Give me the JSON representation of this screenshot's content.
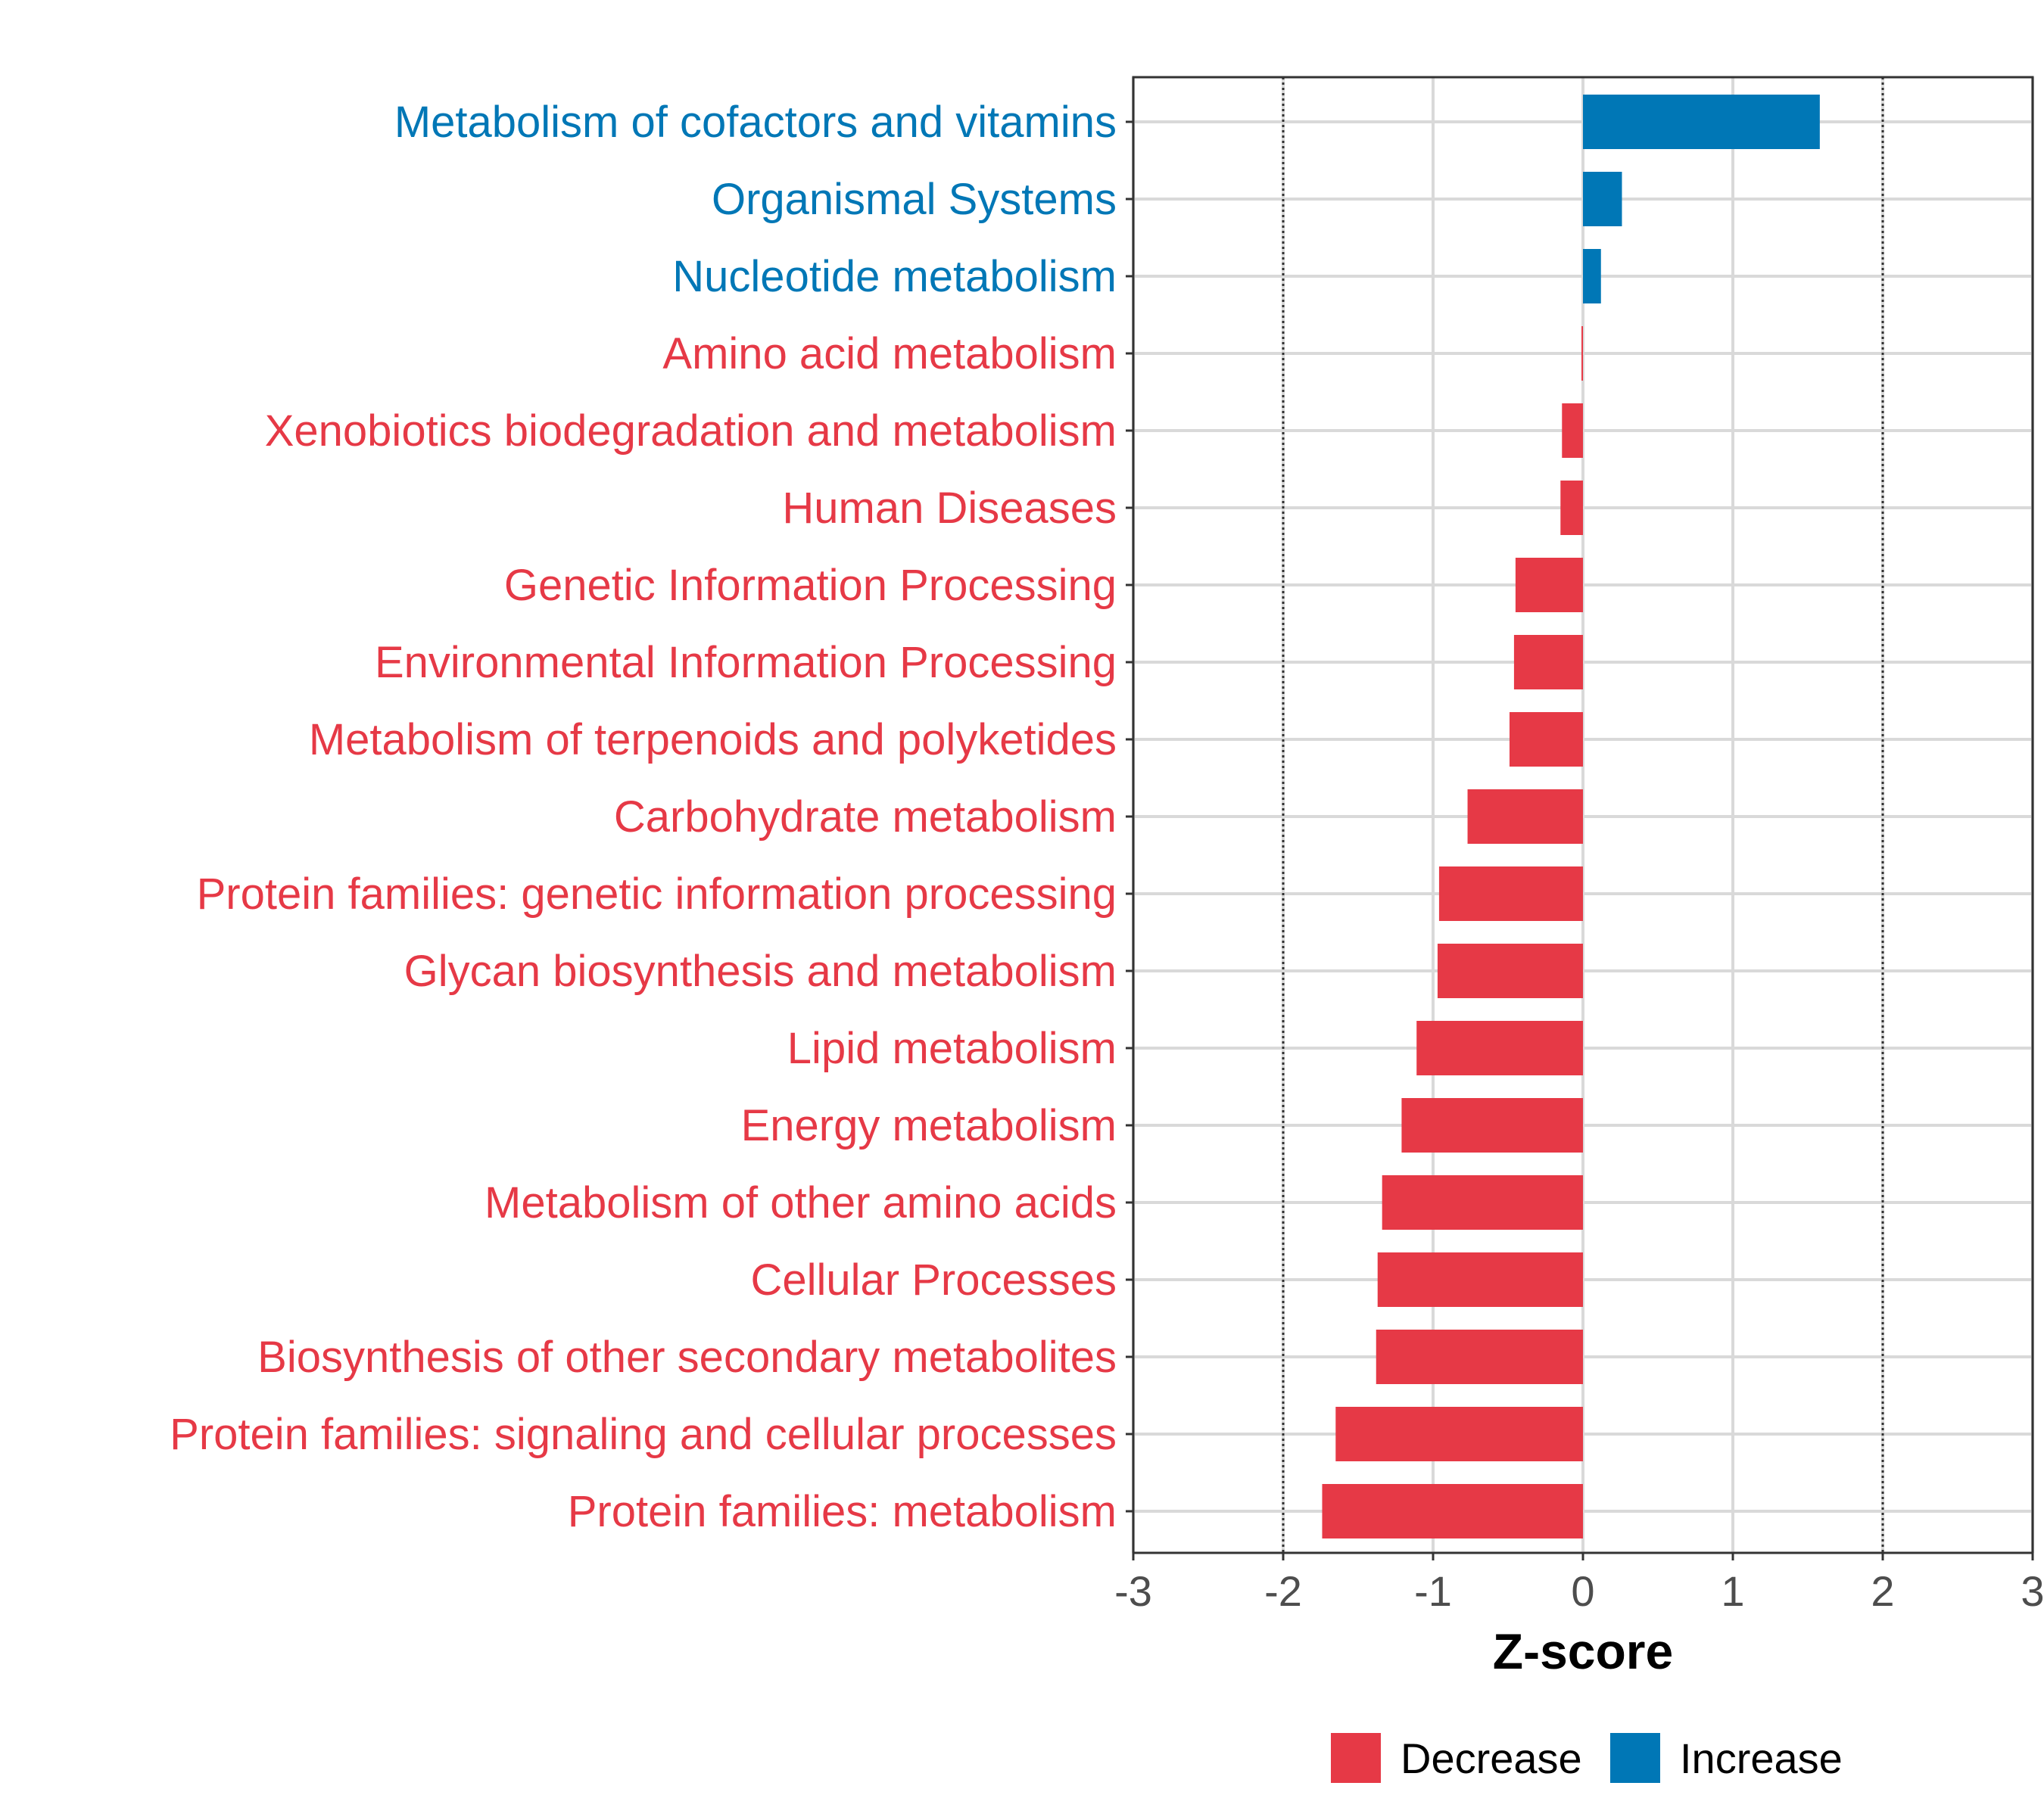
{
  "chart_data": {
    "type": "bar",
    "orientation": "horizontal",
    "title": "",
    "xlabel": "Z-score",
    "ylabel": "",
    "xlim": [
      -3,
      3
    ],
    "xticks": [
      -3,
      -2,
      -1,
      0,
      1,
      2,
      3
    ],
    "threshold_lines": [
      -2,
      2
    ],
    "grid": true,
    "legend_position": "bottom",
    "colors": {
      "Decrease": "#e63946",
      "Increase": "#0077b6"
    },
    "legend": [
      {
        "label": "Decrease",
        "color": "#e63946"
      },
      {
        "label": "Increase",
        "color": "#0077b6"
      }
    ],
    "categories": [
      "Metabolism of cofactors and vitamins",
      "Organismal Systems",
      "Nucleotide metabolism",
      "Amino acid metabolism",
      "Xenobiotics biodegradation and metabolism",
      "Human Diseases",
      "Genetic Information Processing",
      "Environmental Information Processing",
      "Metabolism of terpenoids and polyketides",
      "Carbohydrate metabolism",
      "Protein families: genetic information processing",
      "Glycan biosynthesis and metabolism",
      "Lipid metabolism",
      "Energy metabolism",
      "Metabolism of other amino acids",
      "Cellular Processes",
      "Biosynthesis of other secondary metabolites",
      "Protein families: signaling and cellular processes",
      "Protein families: metabolism"
    ],
    "values": [
      1.58,
      0.26,
      0.12,
      -0.01,
      -0.14,
      -0.15,
      -0.45,
      -0.46,
      -0.49,
      -0.77,
      -0.96,
      -0.97,
      -1.11,
      -1.21,
      -1.34,
      -1.37,
      -1.38,
      -1.65,
      -1.74
    ],
    "groups": [
      "Increase",
      "Increase",
      "Increase",
      "Decrease",
      "Decrease",
      "Decrease",
      "Decrease",
      "Decrease",
      "Decrease",
      "Decrease",
      "Decrease",
      "Decrease",
      "Decrease",
      "Decrease",
      "Decrease",
      "Decrease",
      "Decrease",
      "Decrease",
      "Decrease"
    ]
  }
}
